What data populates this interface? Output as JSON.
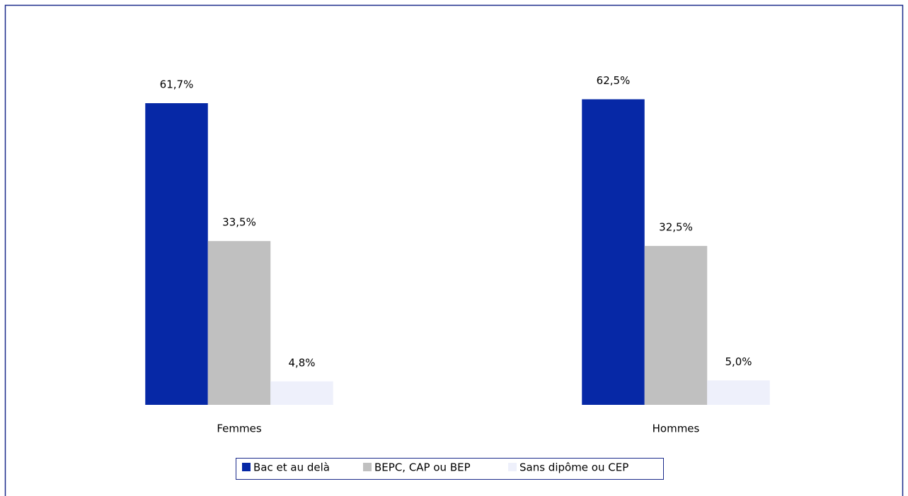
{
  "chart_data": {
    "type": "bar",
    "categories": [
      "Femmes",
      "Hommes"
    ],
    "series": [
      {
        "name": "Bac et au delà",
        "color": "#0628a6",
        "values": [
          61.7,
          62.5
        ],
        "value_labels": [
          "61,7%",
          "62,5%"
        ]
      },
      {
        "name": "BEPC, CAP ou BEP",
        "color": "#c0c0c0",
        "values": [
          33.5,
          32.5
        ],
        "value_labels": [
          "33,5%",
          "32,5%"
        ]
      },
      {
        "name": "Sans dipôme ou CEP",
        "color": "#eef0fb",
        "values": [
          4.8,
          5.0
        ],
        "value_labels": [
          "4,8%",
          "5,0%"
        ]
      }
    ],
    "ylim": [
      0,
      80
    ],
    "legend": "bottom"
  }
}
